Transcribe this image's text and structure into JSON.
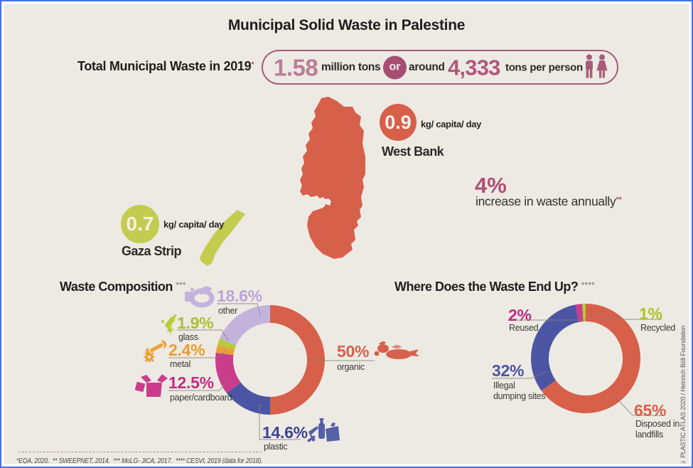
{
  "title": "Municipal Solid Waste in Palestine",
  "header": {
    "label": "Total Municipal Waste in 2019",
    "label_sup": "*",
    "pill": {
      "value1": "1.58",
      "unit1": "million tons",
      "or": "or",
      "around": "around",
      "value2": "4,333",
      "unit2": "tons per person"
    }
  },
  "west_bank": {
    "value": "0.9",
    "unit": "kg/ capita/ day",
    "name": "West Bank",
    "color": "#d7604b"
  },
  "gaza": {
    "value": "0.7",
    "unit": "kg/ capita/ day",
    "name": "Gaza Strip",
    "color": "#c4cc50"
  },
  "increase": {
    "value": "4%",
    "value_color": "#af4f76",
    "label": "increase in waste annually",
    "sup": "**"
  },
  "chart_data": [
    {
      "type": "pie",
      "variant": "donut",
      "title": "Waste Composition",
      "title_sup": "***",
      "legend_position": "around",
      "start_angle_deg": 0,
      "clockwise": true,
      "segments": [
        {
          "label": "organic",
          "value": 50,
          "display": "50%",
          "color": "#d7604b",
          "label_color": "#d7604b"
        },
        {
          "label": "plastic",
          "value": 14.6,
          "display": "14.6%",
          "color": "#4b55a3",
          "label_color": "#3d4498"
        },
        {
          "label": "paper/cardboard",
          "value": 12.5,
          "display": "12.5%",
          "color": "#cb3d8c",
          "label_color": "#c22c85"
        },
        {
          "label": "metal",
          "value": 2.4,
          "display": "2.4%",
          "color": "#e9a23b",
          "label_color": "#e89d31"
        },
        {
          "label": "glass",
          "value": 1.9,
          "display": "1.9%",
          "color": "#b5cc38",
          "label_color": "#aabf2f"
        },
        {
          "label": "other",
          "value": 18.6,
          "display": "18.6%",
          "color": "#c3b3dc",
          "label_color": "#b9a7d8"
        }
      ]
    },
    {
      "type": "pie",
      "variant": "donut",
      "title": "Where Does the Waste End Up?",
      "title_sup": "****",
      "legend_position": "around",
      "start_angle_deg": 0,
      "clockwise": true,
      "segments": [
        {
          "label": "Disposed in landfills",
          "value": 65,
          "display": "65%",
          "color": "#d7604b",
          "label_color": "#d7604b"
        },
        {
          "label": "Illegal dumping sites",
          "value": 32,
          "display": "32%",
          "color": "#4b55a3",
          "label_color": "#4a55a3"
        },
        {
          "label": "Reused",
          "value": 2,
          "display": "2%",
          "color": "#cb3d8c",
          "label_color": "#c22c85"
        },
        {
          "label": "Recycled",
          "value": 1,
          "display": "1%",
          "color": "#b5cc38",
          "label_color": "#adc22f"
        }
      ]
    }
  ],
  "footnote": "*EQA, 2020.  ** SWEEPNET, 2014.  *** MoLG- JICA, 2017.  **** CESVI, 2019 (data for 2018).",
  "attribution": "© PLASTIC ATLAS 2020 / Heinrich Böll Foundation",
  "accent_colors": {
    "frame_border": "#4070f1",
    "background": "#edeae3",
    "mauve": "#a85b79",
    "or_circle": "#a74d72"
  }
}
